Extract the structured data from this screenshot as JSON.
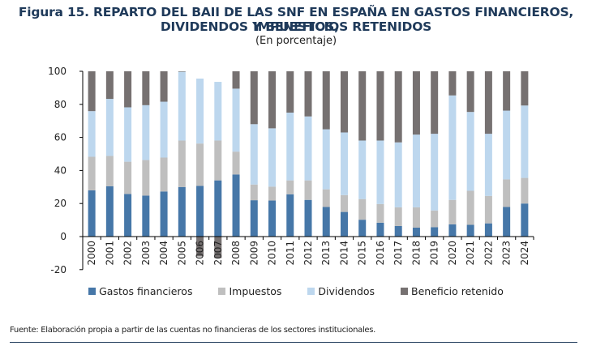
{
  "chart_data": {
    "type": "bar",
    "stacked": true,
    "title": "Figura 15. REPARTO DEL BAII DE LAS SNF EN ESPAÑA EN GASTOS FINANCIEROS, IMPUESTOS,",
    "title_line2": "DIVIDENDOS Y BENEFICIOS RETENIDOS",
    "subtitle": "(En porcentaje)",
    "xlabel": "",
    "ylabel": "",
    "ylim": [
      -20,
      100
    ],
    "yticks": [
      100,
      80,
      60,
      40,
      20,
      0,
      -20
    ],
    "grid": false,
    "legend_position": "bottom",
    "categories": [
      "2000",
      "2001",
      "2002",
      "2003",
      "2004",
      "2005",
      "2006",
      "2007",
      "2008",
      "2009",
      "2010",
      "2011",
      "2012",
      "2013",
      "2014",
      "2015",
      "2016",
      "2017",
      "2018",
      "2019",
      "2020",
      "2021",
      "2022",
      "2023",
      "2024"
    ],
    "series": [
      {
        "name": "Gastos financieros",
        "color": "#4677a8",
        "values": [
          28.0,
          30.5,
          25.8,
          24.8,
          27.3,
          30.0,
          30.7,
          34.0,
          37.6,
          22.0,
          21.8,
          25.6,
          22.2,
          17.9,
          14.9,
          10.2,
          8.4,
          6.4,
          5.4,
          5.7,
          7.4,
          7.1,
          8.0,
          17.9,
          20.0
        ]
      },
      {
        "name": "Impuestos",
        "color": "#bfbfbf",
        "values": [
          20.3,
          18.3,
          19.5,
          21.5,
          20.5,
          28.1,
          25.6,
          24.1,
          13.8,
          9.5,
          8.4,
          8.4,
          11.8,
          10.7,
          10.2,
          12.5,
          11.3,
          11.3,
          12.3,
          10.1,
          14.8,
          20.6,
          16.6,
          16.7,
          15.5
        ]
      },
      {
        "name": "Dividendos",
        "color": "#bdd7ee",
        "values": [
          27.6,
          34.5,
          32.9,
          33.2,
          33.8,
          41.6,
          39.3,
          35.5,
          38.1,
          36.5,
          35.3,
          41.0,
          38.7,
          36.3,
          37.9,
          35.4,
          38.4,
          39.3,
          44.0,
          46.4,
          63.2,
          47.7,
          37.6,
          41.6,
          43.8
        ]
      },
      {
        "name": "Beneficio retenido",
        "color": "#767171",
        "values": [
          24.1,
          16.7,
          21.8,
          20.5,
          18.4,
          0.3,
          -12.0,
          -13.0,
          10.5,
          32.0,
          34.5,
          25.0,
          27.3,
          35.1,
          37.0,
          41.9,
          41.9,
          43.0,
          38.3,
          37.8,
          14.6,
          24.6,
          37.8,
          23.8,
          20.7
        ]
      }
    ]
  },
  "source_note": "Fuente: Elaboración propia a partir de las cuentas no financieras de los sectores institucionales."
}
